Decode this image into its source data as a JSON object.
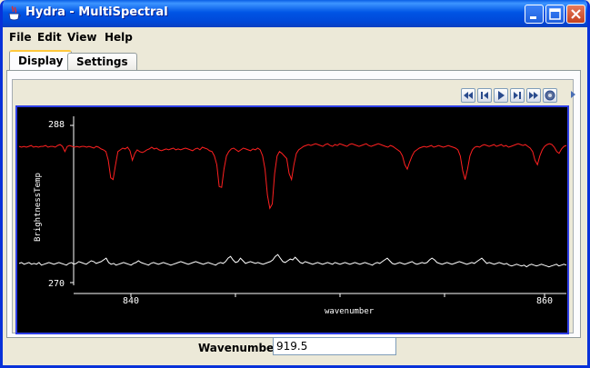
{
  "window": {
    "title": "Hydra - MultiSpectral",
    "title_color": "#FFFFFF",
    "bar_color": "#0055E5"
  },
  "menu": {
    "file": "File",
    "edit": "Edit",
    "view": "View",
    "help": "Help"
  },
  "tabs": [
    {
      "label": "Display",
      "active": true
    },
    {
      "label": "Settings",
      "active": false
    }
  ],
  "toolbar": {
    "buttons": [
      "go-first-icon",
      "step-back-icon",
      "play-icon",
      "step-forward-icon",
      "go-last-icon",
      "settings-icon"
    ]
  },
  "chart_data": {
    "type": "line",
    "ylabel": "BrightnessTemp",
    "xlabel": "wavenumber",
    "y_ticks": [
      "288",
      "270"
    ],
    "x_ticks": [
      "840",
      "860"
    ],
    "ylim": [
      270,
      288
    ],
    "series_colors": [
      "#FF2020",
      "#FFFFFF"
    ],
    "series": [
      {
        "name": "spectrum-red",
        "values": [
          285.6,
          285.5,
          285.6,
          285.5,
          285.6,
          285.7,
          285.5,
          285.6,
          285.5,
          285.6,
          285.6,
          285.7,
          285.5,
          285.6,
          285.6,
          285.5,
          285.7,
          285.8,
          285.6,
          285.0,
          285.6,
          285.7,
          285.6,
          285.5,
          285.6,
          285.5,
          285.6,
          285.6,
          285.5,
          285.6,
          285.5,
          285.4,
          285.6,
          285.5,
          285.3,
          285.2,
          285.0,
          284.0,
          282.0,
          281.8,
          283.5,
          285.0,
          285.2,
          285.4,
          285.3,
          285.5,
          285.1,
          284.0,
          284.8,
          285.2,
          285.0,
          284.9,
          285.0,
          285.2,
          285.3,
          285.5,
          285.3,
          285.4,
          285.2,
          285.1,
          285.2,
          285.3,
          285.2,
          285.3,
          285.4,
          285.2,
          285.3,
          285.2,
          285.3,
          285.4,
          285.3,
          285.2,
          285.1,
          285.3,
          285.4,
          285.2,
          285.5,
          285.4,
          285.3,
          285.1,
          285.0,
          284.5,
          283.5,
          281.0,
          280.9,
          283.0,
          284.5,
          285.0,
          285.3,
          285.4,
          285.2,
          285.0,
          285.2,
          285.4,
          285.3,
          285.2,
          285.1,
          285.3,
          285.2,
          285.4,
          285.2,
          284.5,
          283.0,
          280.0,
          278.5,
          279.0,
          282.5,
          284.5,
          285.0,
          284.8,
          284.5,
          284.2,
          282.5,
          281.8,
          283.5,
          284.8,
          285.2,
          285.4,
          285.6,
          285.7,
          285.8,
          285.7,
          285.8,
          285.9,
          285.8,
          285.7,
          285.6,
          285.8,
          285.9,
          285.7,
          285.6,
          285.8,
          285.7,
          285.9,
          285.8,
          285.7,
          285.6,
          285.8,
          285.9,
          285.8,
          285.7,
          285.6,
          285.7,
          285.8,
          285.9,
          285.7,
          285.6,
          285.7,
          285.8,
          285.9,
          285.8,
          285.7,
          285.6,
          285.5,
          285.7,
          285.6,
          285.4,
          285.2,
          285.0,
          284.5,
          283.5,
          283.0,
          283.8,
          284.5,
          285.0,
          285.2,
          285.4,
          285.5,
          285.6,
          285.5,
          285.6,
          285.7,
          285.5,
          285.6,
          285.7,
          285.6,
          285.5,
          285.6,
          285.7,
          285.6,
          285.5,
          285.4,
          285.2,
          284.5,
          282.8,
          281.8,
          283.0,
          284.5,
          285.2,
          285.5,
          285.6,
          285.5,
          285.7,
          285.8,
          285.7,
          285.6,
          285.7,
          285.8,
          285.6,
          285.7,
          285.8,
          285.6,
          285.7,
          285.5,
          285.6,
          285.7,
          285.8,
          285.9,
          285.8,
          285.7,
          285.8,
          285.6,
          285.4,
          285.0,
          284.0,
          283.5,
          284.5,
          285.2,
          285.6,
          285.8,
          285.9,
          285.8,
          285.5,
          285.0,
          284.8,
          285.3,
          285.6,
          285.7
        ]
      },
      {
        "name": "spectrum-white",
        "values": [
          272.2,
          272.3,
          272.1,
          272.2,
          272.3,
          272.1,
          272.2,
          272.1,
          272.3,
          272.0,
          272.1,
          272.2,
          272.3,
          272.2,
          272.1,
          272.2,
          272.3,
          272.2,
          272.1,
          272.0,
          272.2,
          272.3,
          272.1,
          272.2,
          272.4,
          272.3,
          272.2,
          272.1,
          272.3,
          272.5,
          272.4,
          272.2,
          272.3,
          272.4,
          272.6,
          272.8,
          272.3,
          272.1,
          272.2,
          272.0,
          272.1,
          272.2,
          272.3,
          272.2,
          272.1,
          272.0,
          272.2,
          272.3,
          272.5,
          272.3,
          272.2,
          272.1,
          272.0,
          272.2,
          272.3,
          272.2,
          272.1,
          272.2,
          272.3,
          272.2,
          272.1,
          272.0,
          272.1,
          272.2,
          272.3,
          272.4,
          272.3,
          272.2,
          272.1,
          272.2,
          272.3,
          272.4,
          272.3,
          272.2,
          272.1,
          272.2,
          272.3,
          272.2,
          272.1,
          272.0,
          272.2,
          272.3,
          272.2,
          272.4,
          272.8,
          273.0,
          272.6,
          272.3,
          272.4,
          272.8,
          272.5,
          272.2,
          272.3,
          272.4,
          272.3,
          272.2,
          272.3,
          272.2,
          272.1,
          272.2,
          272.3,
          272.4,
          272.6,
          273.0,
          273.2,
          272.8,
          272.4,
          272.3,
          272.5,
          272.7,
          272.6,
          272.9,
          272.6,
          272.3,
          272.2,
          272.4,
          272.3,
          272.2,
          272.1,
          272.2,
          272.3,
          272.2,
          272.1,
          272.2,
          272.3,
          272.2,
          272.1,
          272.3,
          272.2,
          272.1,
          272.2,
          272.3,
          272.2,
          272.1,
          272.2,
          272.3,
          272.2,
          272.1,
          272.2,
          272.3,
          272.2,
          272.1,
          272.0,
          272.2,
          272.3,
          272.2,
          272.4,
          272.6,
          272.8,
          272.5,
          272.2,
          272.1,
          272.2,
          272.3,
          272.2,
          272.1,
          272.2,
          272.3,
          272.4,
          272.2,
          272.1,
          272.2,
          272.3,
          272.2,
          272.3,
          272.6,
          272.8,
          272.6,
          272.3,
          272.2,
          272.1,
          272.2,
          272.3,
          272.2,
          272.1,
          272.2,
          272.3,
          272.4,
          272.3,
          272.2,
          272.1,
          272.2,
          272.3,
          272.2,
          272.4,
          272.6,
          272.8,
          272.5,
          272.2,
          272.3,
          272.2,
          272.1,
          272.2,
          272.3,
          272.2,
          272.1,
          272.2,
          272.0,
          271.9,
          272.0,
          272.1,
          272.0,
          271.9,
          272.0,
          271.8,
          272.0,
          272.1,
          272.0,
          271.9,
          272.0,
          272.1,
          272.0,
          271.9,
          271.8,
          271.9,
          272.0,
          272.1,
          271.9,
          272.0,
          272.1,
          272.0
        ]
      }
    ]
  },
  "footer": {
    "wavenumber_label": "Wavenumber:",
    "wavenumber_value": "919.5"
  }
}
